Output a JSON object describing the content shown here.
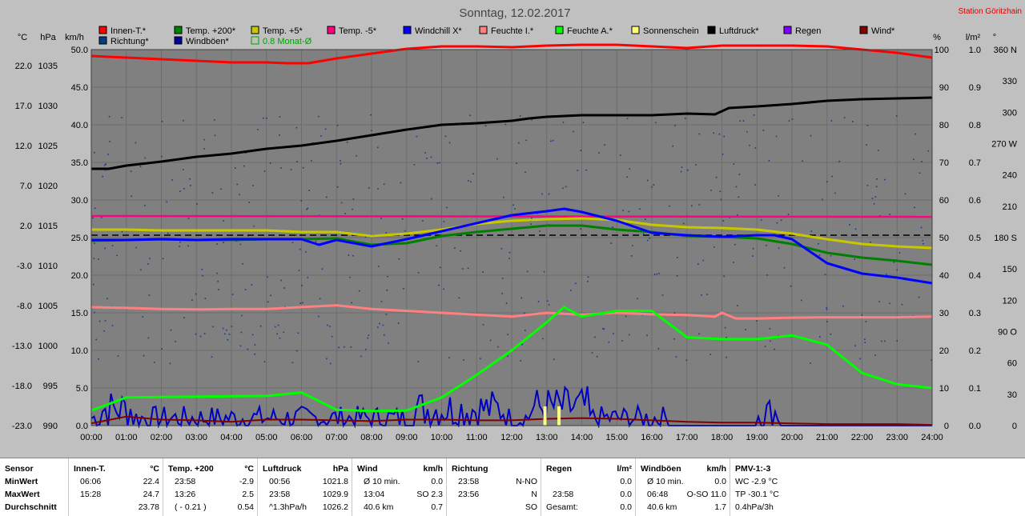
{
  "chart_data": {
    "type": "line",
    "title": "Sonntag, 12.02.2017",
    "station": "Station Göritzhain",
    "x_ticks": [
      "00:00",
      "01:00",
      "02:00",
      "03:00",
      "04:00",
      "05:00",
      "06:00",
      "07:00",
      "08:00",
      "09:00",
      "10:00",
      "11:00",
      "12:00",
      "13:00",
      "14:00",
      "15:00",
      "16:00",
      "17:00",
      "18:00",
      "19:00",
      "20:00",
      "21:00",
      "22:00",
      "23:00",
      "24:00"
    ],
    "axes": [
      {
        "unit": "°C",
        "ticks": [
          "-23.0",
          "-18.0",
          "-13.0",
          "-8.0",
          "-3.0",
          "2.0",
          "7.0",
          "12.0",
          "17.0",
          "22.0"
        ],
        "range": [
          -23,
          24
        ]
      },
      {
        "unit": "hPa",
        "ticks": [
          "990",
          "995",
          "1000",
          "1005",
          "1010",
          "1015",
          "1020",
          "1025",
          "1030",
          "1035"
        ],
        "range": [
          990,
          1037
        ]
      },
      {
        "unit": "km/h",
        "ticks": [
          "0.0",
          "5.0",
          "10.0",
          "15.0",
          "20.0",
          "25.0",
          "30.0",
          "35.0",
          "40.0",
          "45.0",
          "50.0"
        ],
        "range": [
          0,
          50
        ]
      },
      {
        "unit": "%",
        "ticks": [
          "0",
          "10",
          "20",
          "30",
          "40",
          "50",
          "60",
          "70",
          "80",
          "90",
          "100"
        ],
        "range": [
          0,
          100
        ]
      },
      {
        "unit": "l/m²",
        "ticks": [
          "0.0",
          "0.1",
          "0.2",
          "0.3",
          "0.4",
          "0.5",
          "0.6",
          "0.7",
          "0.8",
          "0.9",
          "1.0"
        ],
        "range": [
          0,
          1
        ]
      },
      {
        "unit": "°",
        "ticks": [
          "0",
          "30",
          "60",
          "90 O",
          "120",
          "150",
          "180 S",
          "210",
          "240",
          "270 W",
          "300",
          "330",
          "360 N"
        ],
        "range": [
          0,
          360
        ]
      }
    ],
    "legend": [
      {
        "name": "Innen-T.*",
        "color": "#ff0000"
      },
      {
        "name": "Temp. +200*",
        "color": "#008000"
      },
      {
        "name": "Temp. +5*",
        "color": "#c8c800"
      },
      {
        "name": "Temp. -5*",
        "color": "#ff0080"
      },
      {
        "name": "Windchill X*",
        "color": "#0000ff"
      },
      {
        "name": "Feuchte I.*",
        "color": "#ff8080"
      },
      {
        "name": "Feuchte A.*",
        "color": "#00ff00"
      },
      {
        "name": "Sonnenschein",
        "color": "#ffff80"
      },
      {
        "name": "Luftdruck*",
        "color": "#000000"
      },
      {
        "name": "Regen",
        "color": "#8000ff"
      },
      {
        "name": "Wind*",
        "color": "#800000"
      },
      {
        "name": "Richtung*",
        "color": "#004080"
      },
      {
        "name": "Windböen*",
        "color": "#0000a0"
      },
      {
        "name": "0.8 Monat-Ø",
        "color": "#00a000",
        "hollow": true
      }
    ],
    "series": [
      {
        "name": "Innen-T.",
        "color": "#ff0000",
        "axis": 0,
        "x": [
          0,
          1,
          2,
          3,
          4,
          5,
          5.6,
          6.2,
          7,
          8,
          9,
          10,
          11,
          12,
          13,
          14,
          15,
          16,
          17,
          18,
          19,
          20,
          21,
          22,
          23,
          24
        ],
        "y": [
          23.2,
          23.0,
          22.8,
          22.6,
          22.4,
          22.4,
          22.3,
          22.3,
          22.9,
          23.5,
          24.1,
          24.4,
          24.4,
          24.3,
          24.5,
          24.6,
          24.6,
          24.4,
          24.2,
          24.5,
          24.5,
          24.5,
          24.4,
          24.0,
          23.6,
          23.0
        ]
      },
      {
        "name": "Luftdruck",
        "color": "#000000",
        "axis": 1,
        "x": [
          0,
          0.5,
          1,
          2,
          3,
          4,
          5,
          6,
          7,
          8,
          9,
          10,
          11,
          12,
          12.5,
          13,
          14,
          15,
          16,
          17,
          17.8,
          18.2,
          19,
          20,
          21,
          22,
          23,
          24
        ],
        "y": [
          1022.1,
          1022.1,
          1022.5,
          1023.0,
          1023.6,
          1024.0,
          1024.6,
          1025.0,
          1025.6,
          1026.3,
          1027.0,
          1027.6,
          1027.8,
          1028.1,
          1028.4,
          1028.6,
          1028.8,
          1028.8,
          1028.8,
          1029.0,
          1028.9,
          1029.7,
          1029.9,
          1030.2,
          1030.6,
          1030.8,
          1030.9,
          1031.0
        ]
      },
      {
        "name": "Temp. -5",
        "color": "#ff0080",
        "axis": 0,
        "x": [
          0,
          24
        ],
        "y": [
          3.2,
          3.1
        ]
      },
      {
        "name": "Temp. +5",
        "color": "#c8c800",
        "axis": 0,
        "x": [
          0,
          1,
          2,
          3,
          4,
          5,
          6,
          7,
          8,
          9,
          10,
          11,
          12,
          13,
          14,
          15,
          16,
          17,
          18,
          19,
          20,
          21,
          22,
          23,
          24
        ],
        "y": [
          1.5,
          1.5,
          1.4,
          1.4,
          1.4,
          1.4,
          1.2,
          1.2,
          0.7,
          1.0,
          1.5,
          2.2,
          2.6,
          2.8,
          2.9,
          2.7,
          2.1,
          1.8,
          1.7,
          1.5,
          1.0,
          0.3,
          -0.3,
          -0.6,
          -0.8
        ]
      },
      {
        "name": "Temp. +200",
        "color": "#008000",
        "axis": 0,
        "x": [
          0,
          1,
          2,
          3,
          4,
          5,
          6,
          7,
          8,
          9,
          10,
          11,
          12,
          13,
          14,
          15,
          16,
          17,
          18,
          19,
          20,
          21,
          22,
          23,
          24
        ],
        "y": [
          0.1,
          0.2,
          0.3,
          0.2,
          0.2,
          0.3,
          0.3,
          0.4,
          -0.4,
          -0.2,
          0.7,
          1.2,
          1.6,
          2.0,
          2.0,
          1.5,
          1.2,
          0.7,
          0.6,
          0.4,
          -0.3,
          -1.4,
          -2.0,
          -2.4,
          -2.9
        ]
      },
      {
        "name": "Windchill",
        "color": "#0000ff",
        "axis": 0,
        "x": [
          0,
          1,
          2,
          3,
          4,
          5,
          6,
          6.5,
          7,
          8,
          9,
          10,
          11,
          12,
          13,
          13.5,
          14,
          15,
          16,
          17,
          18,
          19,
          19.5,
          20,
          21,
          22,
          23,
          24
        ],
        "y": [
          0.2,
          0.2,
          0.3,
          0.2,
          0.3,
          0.3,
          0.3,
          -0.4,
          0.2,
          -0.6,
          0.3,
          1.3,
          2.3,
          3.3,
          3.8,
          4.1,
          3.7,
          2.6,
          1.1,
          0.8,
          0.6,
          0.8,
          0.8,
          0.3,
          -2.7,
          -4.0,
          -4.5,
          -5.2
        ]
      },
      {
        "name": "Feuchte I.",
        "color": "#ff8080",
        "axis": 3,
        "x": [
          0,
          1,
          2,
          3,
          4,
          5,
          6,
          7,
          8,
          9,
          10,
          11,
          12,
          13,
          14,
          15,
          16,
          17,
          17.8,
          18,
          18.4,
          19,
          20,
          21,
          22,
          23,
          24
        ],
        "y": [
          31.5,
          31.3,
          31.0,
          30.9,
          31.0,
          31.0,
          31.5,
          32.0,
          31.0,
          30.5,
          30.0,
          29.5,
          29.0,
          30.0,
          29.5,
          30.0,
          29.6,
          29.4,
          29.0,
          30.0,
          28.5,
          28.5,
          28.7,
          28.8,
          28.8,
          28.8,
          29.0
        ]
      },
      {
        "name": "Feuchte A.",
        "color": "#00ff00",
        "axis": 3,
        "x": [
          0,
          1,
          2,
          3,
          4,
          5,
          6,
          7,
          8,
          9,
          10,
          11,
          12,
          13,
          13.5,
          14,
          15,
          16,
          17,
          18,
          19,
          20,
          21,
          22,
          23,
          24
        ],
        "y": [
          4,
          7.5,
          7.6,
          7.7,
          7.8,
          7.9,
          8.8,
          4.2,
          3.9,
          4.0,
          7.5,
          13.5,
          20.0,
          27.5,
          31.5,
          29.0,
          30.5,
          30.5,
          23.5,
          23.0,
          23.0,
          24.0,
          21.5,
          14.0,
          11.0,
          10.0
        ]
      }
    ],
    "wind_avg_kmh": {
      "x": [
        0,
        1,
        2,
        3,
        4,
        5,
        6,
        7,
        8,
        9,
        10,
        11,
        12,
        13,
        14,
        15,
        16,
        17,
        18,
        19,
        20,
        21,
        22,
        23,
        24
      ],
      "y": [
        0.3,
        1.2,
        0.8,
        0.7,
        0.5,
        0.8,
        0.8,
        0.7,
        0.6,
        0.8,
        0.8,
        0.7,
        0.7,
        0.9,
        1.0,
        0.9,
        0.7,
        0.5,
        0.4,
        0.4,
        0.3,
        0.2,
        0.2,
        0.2,
        0.1
      ]
    },
    "monthly_avg_temp_C": 0.8,
    "sunshine_h": [
      12.95,
      13.35
    ]
  },
  "stats": {
    "sensor": {
      "header": "Sensor",
      "rows": [
        "MinWert",
        "MaxWert",
        "Durchschnitt"
      ]
    },
    "innen": {
      "header": "Innen-T.",
      "unit": "°C",
      "rows": [
        [
          "06:06",
          "22.4"
        ],
        [
          "15:28",
          "24.7"
        ],
        [
          "",
          "23.78"
        ]
      ]
    },
    "temp200": {
      "header": "Temp. +200",
      "unit": "°C",
      "rows": [
        [
          "23:58",
          "-2.9"
        ],
        [
          "13:26",
          "2.5"
        ],
        [
          "( - 0.21 )",
          "0.54"
        ]
      ]
    },
    "luftdruck": {
      "header": "Luftdruck",
      "unit": "hPa",
      "rows": [
        [
          "00:56",
          "1021.8"
        ],
        [
          "23:58",
          "1029.9"
        ],
        [
          "^1.3hPa/h",
          "1026.2"
        ]
      ]
    },
    "wind": {
      "header": "Wind",
      "unit": "km/h",
      "rows": [
        [
          "Ø 10 min.",
          "0.0"
        ],
        [
          "13:04",
          "SO 2.3"
        ],
        [
          "40.6 km",
          "0.7"
        ]
      ]
    },
    "richtung": {
      "header": "Richtung",
      "rows": [
        [
          "23:58",
          "N-NO"
        ],
        [
          "23:56",
          "N"
        ],
        [
          "",
          "SO"
        ]
      ]
    },
    "regen": {
      "header": "Regen",
      "unit": "l/m²",
      "rows": [
        [
          "",
          "0.0"
        ],
        [
          "23:58",
          "0.0"
        ],
        [
          "Gesamt:",
          "0.0"
        ]
      ]
    },
    "windboeen": {
      "header": "Windböen",
      "unit": "km/h",
      "rows": [
        [
          "Ø 10 min.",
          "0.0"
        ],
        [
          "06:48",
          "O-SO 11.0"
        ],
        [
          "40.6 km",
          "1.7"
        ]
      ]
    },
    "pmv": {
      "header": "PMV-1:-3",
      "rows": [
        "WC -2.9 °C",
        "TP -30.1 °C",
        "0.4hPa/3h"
      ]
    }
  }
}
